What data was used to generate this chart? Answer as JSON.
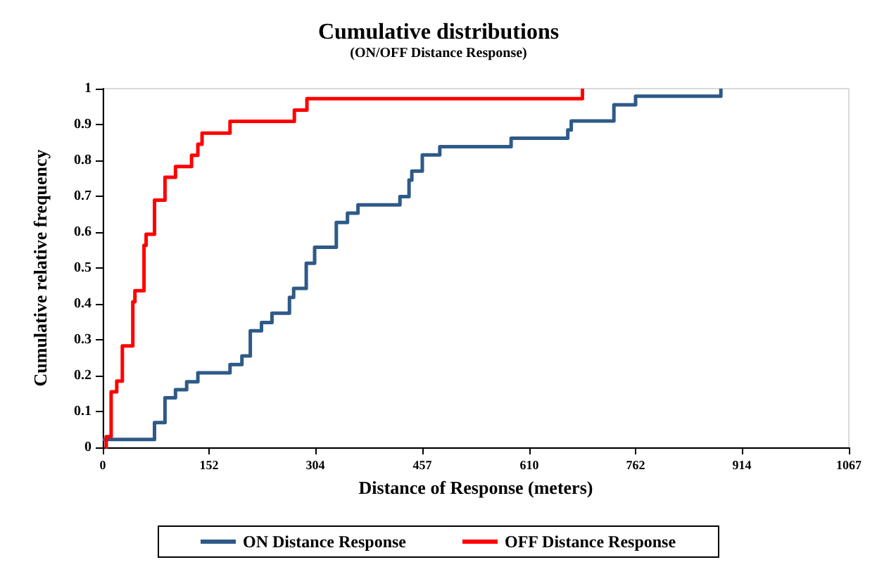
{
  "chart_data": {
    "type": "step",
    "title": "Cumulative distributions",
    "subtitle": "(ON/OFF Distance Response)",
    "xlabel": "Distance of Response (meters)",
    "ylabel": "Cumulative relative frequency",
    "xlim": [
      0,
      1067
    ],
    "xticks": [
      0,
      152,
      304,
      457,
      610,
      762,
      914,
      1067
    ],
    "ylim": [
      0,
      1
    ],
    "yticks": [
      0,
      0.1,
      0.2,
      0.3,
      0.4,
      0.5,
      0.6,
      0.7,
      0.8,
      0.9,
      1
    ],
    "grid": false,
    "legend": "bottom",
    "marker": "none",
    "line_style": "solid",
    "series": [
      {
        "name": "ON Distance Response",
        "color": "#2e5a87",
        "x": [
          0,
          74,
          89,
          104,
          120,
          136,
          182,
          199,
          211,
          227,
          242,
          267,
          273,
          291,
          303,
          334,
          350,
          365,
          425,
          438,
          442,
          457,
          482,
          584,
          665,
          670,
          731,
          762,
          884
        ],
        "values": [
          0.022,
          0.069,
          0.138,
          0.161,
          0.183,
          0.208,
          0.231,
          0.255,
          0.325,
          0.348,
          0.374,
          0.418,
          0.443,
          0.513,
          0.558,
          0.627,
          0.653,
          0.676,
          0.699,
          0.745,
          0.77,
          0.815,
          0.838,
          0.862,
          0.885,
          0.91,
          0.955,
          0.979,
          1
        ]
      },
      {
        "name": "OFF Distance Response",
        "color": "#ff0000",
        "x": [
          3,
          5,
          12,
          20,
          28,
          43,
          46,
          59,
          62,
          74,
          89,
          104,
          127,
          136,
          142,
          182,
          274,
          292,
          686
        ],
        "values": [
          0,
          0.03,
          0.155,
          0.185,
          0.283,
          0.406,
          0.437,
          0.563,
          0.594,
          0.689,
          0.753,
          0.783,
          0.814,
          0.845,
          0.876,
          0.909,
          0.94,
          0.972,
          1
        ]
      }
    ]
  }
}
